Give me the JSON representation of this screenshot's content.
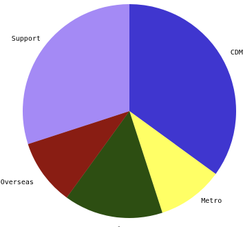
{
  "chart_data": {
    "type": "pie",
    "title": "",
    "start_angle_deg": 0,
    "direction": "clockwise",
    "slices": [
      {
        "label": "CDM",
        "value": 35,
        "color": "#3f36cf"
      },
      {
        "label": "Metro",
        "value": 10,
        "color": "#ffff66"
      },
      {
        "label": "Local",
        "value": 15,
        "color": "#2d4e12"
      },
      {
        "label": "Overseas",
        "value": 10,
        "color": "#891d13"
      },
      {
        "label": "Support",
        "value": 30,
        "color": "#a48af5"
      }
    ]
  }
}
